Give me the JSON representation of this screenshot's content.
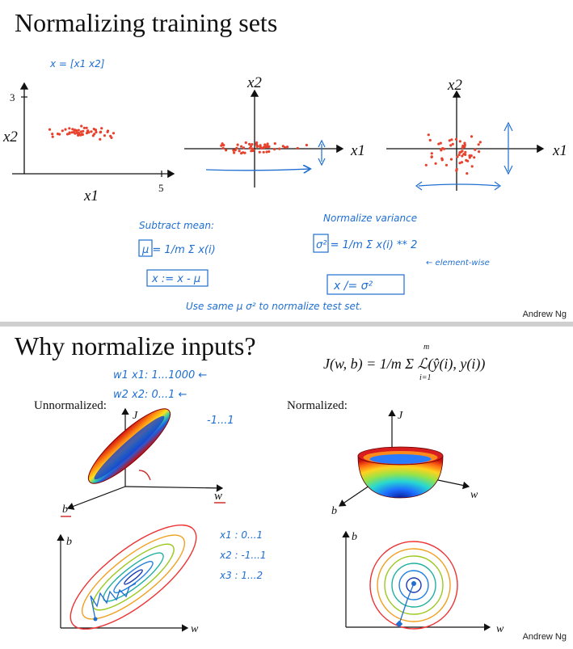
{
  "slide1": {
    "title": "Normalizing training sets",
    "credit": "Andrew Ng",
    "note_x": "x = [x1 x2]",
    "axis_x1": "x1",
    "axis_x2": "x2",
    "tick_3": "3",
    "tick_5": "5",
    "subtract_mean": "Subtract mean:",
    "mu_formula": "μ = 1/m Σ x(i)",
    "mu_update": "x := x - μ",
    "normalize_variance": "Normalize variance",
    "sigma_formula": "σ² = 1/m Σ x(i) ** 2",
    "elementwise": "← element-wise",
    "sigma_update": "x /= σ²",
    "use_same": "Use same  μ σ²  to normalize test set."
  },
  "slide2": {
    "title": "Why normalize inputs?",
    "credit": "Andrew Ng",
    "cost_formula": "J(w, b) = 1/m Σ ℒ(ŷ(i), y(i))",
    "sum_upper": "m",
    "sum_lower": "i=1",
    "notes_top": [
      "w1  x1:  1...1000 ←",
      "w2  x2:  0...1 ←",
      "-1...1"
    ],
    "notes_right": [
      "x1 : 0...1",
      "x2 : -1...1",
      "x3 : 1...2"
    ],
    "unnormalized": "Unnormalized:",
    "normalized": "Normalized:",
    "axis_j": "J",
    "axis_w": "w",
    "axis_b": "b"
  }
}
